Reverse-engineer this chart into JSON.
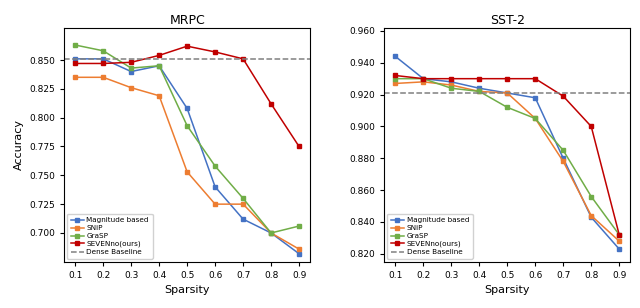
{
  "sparsity": [
    0.1,
    0.2,
    0.3,
    0.4,
    0.5,
    0.6,
    0.7,
    0.8,
    0.9
  ],
  "mrpc": {
    "magnitude": [
      0.851,
      0.851,
      0.84,
      0.845,
      0.808,
      0.74,
      0.712,
      0.7,
      0.682
    ],
    "snip": [
      0.835,
      0.835,
      0.826,
      0.819,
      0.753,
      0.725,
      0.725,
      0.7,
      0.686
    ],
    "grasp": [
      0.863,
      0.858,
      0.843,
      0.845,
      0.793,
      0.758,
      0.73,
      0.7,
      0.706
    ],
    "seven": [
      0.847,
      0.847,
      0.848,
      0.854,
      0.862,
      0.857,
      0.851,
      0.812,
      0.775
    ],
    "dense": 0.851
  },
  "sst2": {
    "magnitude": [
      0.944,
      0.93,
      0.928,
      0.924,
      0.921,
      0.918,
      0.88,
      0.843,
      0.823
    ],
    "snip": [
      0.927,
      0.928,
      0.926,
      0.922,
      0.921,
      0.905,
      0.878,
      0.844,
      0.828
    ],
    "grasp": [
      0.93,
      0.93,
      0.924,
      0.922,
      0.912,
      0.905,
      0.885,
      0.856,
      0.832
    ],
    "seven": [
      0.932,
      0.93,
      0.93,
      0.93,
      0.93,
      0.93,
      0.919,
      0.9,
      0.832
    ],
    "dense": 0.921
  },
  "colors": {
    "magnitude": "#4472C4",
    "snip": "#ED7D31",
    "grasp": "#70AD47",
    "seven": "#C00000",
    "dense": "#808080"
  },
  "labels": {
    "magnitude": "Magnitude based",
    "snip": "SNiP",
    "grasp": "GraSP",
    "seven": "SEVENno(ours)",
    "dense": "Dense Baseline"
  },
  "mrpc_ylim": [
    0.675,
    0.878
  ],
  "sst2_ylim": [
    0.815,
    0.962
  ],
  "mrpc_yticks": [
    0.7,
    0.725,
    0.75,
    0.775,
    0.8,
    0.825,
    0.85
  ],
  "sst2_yticks": [
    0.82,
    0.84,
    0.86,
    0.88,
    0.9,
    0.92,
    0.94,
    0.96
  ],
  "title_mrpc": "MRPC",
  "title_sst2": "SST-2",
  "xlabel": "Sparsity",
  "ylabel": "Accuracy"
}
